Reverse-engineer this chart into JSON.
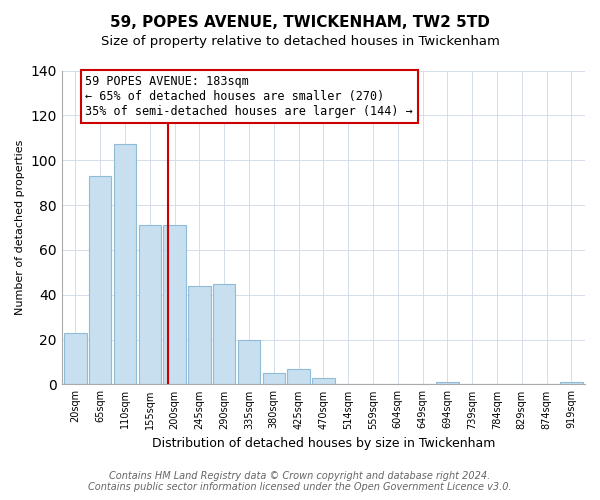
{
  "title": "59, POPES AVENUE, TWICKENHAM, TW2 5TD",
  "subtitle": "Size of property relative to detached houses in Twickenham",
  "xlabel": "Distribution of detached houses by size in Twickenham",
  "ylabel": "Number of detached properties",
  "bar_labels": [
    "20sqm",
    "65sqm",
    "110sqm",
    "155sqm",
    "200sqm",
    "245sqm",
    "290sqm",
    "335sqm",
    "380sqm",
    "425sqm",
    "470sqm",
    "514sqm",
    "559sqm",
    "604sqm",
    "649sqm",
    "694sqm",
    "739sqm",
    "784sqm",
    "829sqm",
    "874sqm",
    "919sqm"
  ],
  "bar_values": [
    23,
    93,
    107,
    71,
    71,
    44,
    45,
    20,
    5,
    7,
    3,
    0,
    0,
    0,
    0,
    1,
    0,
    0,
    0,
    0,
    1
  ],
  "bar_color": "#c8dff0",
  "bar_edge_color": "#90bcd8",
  "vline_color": "#cc0000",
  "annotation_title": "59 POPES AVENUE: 183sqm",
  "annotation_line1": "← 65% of detached houses are smaller (270)",
  "annotation_line2": "35% of semi-detached houses are larger (144) →",
  "annotation_box_color": "white",
  "annotation_box_edge": "#cc0000",
  "ylim": [
    0,
    140
  ],
  "yticks": [
    0,
    20,
    40,
    60,
    80,
    100,
    120,
    140
  ],
  "footer_line1": "Contains HM Land Registry data © Crown copyright and database right 2024.",
  "footer_line2": "Contains public sector information licensed under the Open Government Licence v3.0.",
  "title_fontsize": 11,
  "xlabel_fontsize": 9,
  "ylabel_fontsize": 8,
  "footer_fontsize": 7,
  "annotation_fontsize": 8.5,
  "vline_position": 3.72
}
